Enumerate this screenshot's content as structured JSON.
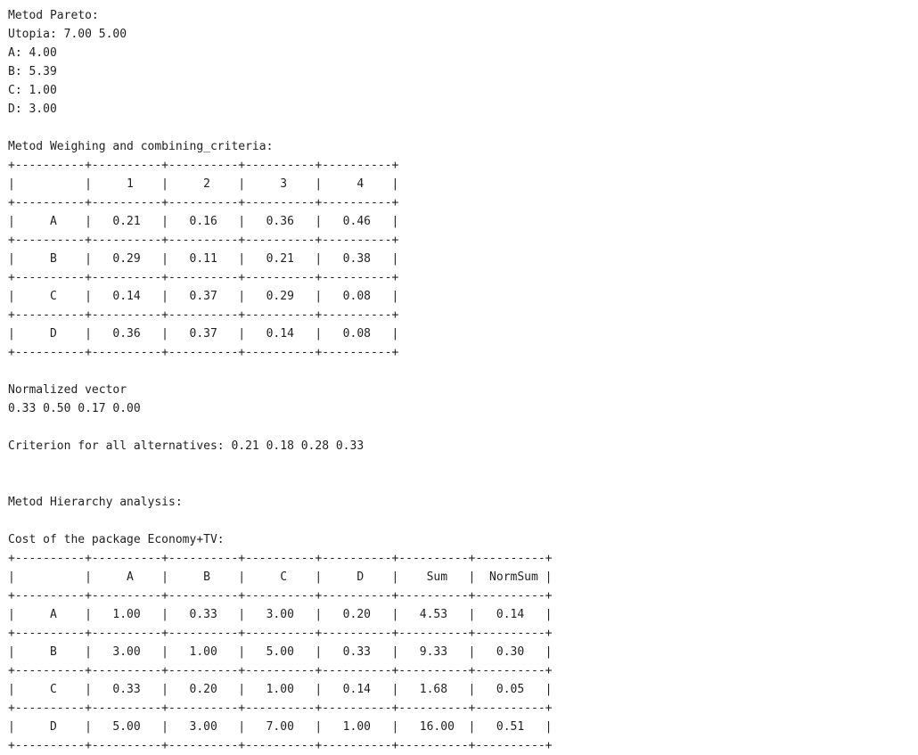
{
  "console": {
    "lines": [
      "Metod Pareto:",
      "Utopia: 7.00 5.00",
      "A: 4.00",
      "B: 5.39",
      "C: 1.00",
      "D: 3.00",
      "",
      "Metod Weighing and combining_criteria:",
      "+----------+----------+----------+----------+----------+",
      "|          |     1    |     2    |     3    |     4    |",
      "+----------+----------+----------+----------+----------+",
      "|     A    |   0.21   |   0.16   |   0.36   |   0.46   |",
      "+----------+----------+----------+----------+----------+",
      "|     B    |   0.29   |   0.11   |   0.21   |   0.38   |",
      "+----------+----------+----------+----------+----------+",
      "|     C    |   0.14   |   0.37   |   0.29   |   0.08   |",
      "+----------+----------+----------+----------+----------+",
      "|     D    |   0.36   |   0.37   |   0.14   |   0.08   |",
      "+----------+----------+----------+----------+----------+",
      "",
      "Normalized vector",
      "0.33 0.50 0.17 0.00",
      "",
      "Criterion for all alternatives: 0.21 0.18 0.28 0.33",
      "",
      "",
      "Metod Hierarchy analysis:",
      "",
      "Cost of the package Economy+TV:",
      "+----------+----------+----------+----------+----------+----------+----------+",
      "|          |     A    |     B    |     C    |     D    |    Sum   |  NormSum |",
      "+----------+----------+----------+----------+----------+----------+----------+",
      "|     A    |   1.00   |   0.33   |   3.00   |   0.20   |   4.53   |   0.14   |",
      "+----------+----------+----------+----------+----------+----------+----------+",
      "|     B    |   3.00   |   1.00   |   5.00   |   0.33   |   9.33   |   0.30   |",
      "+----------+----------+----------+----------+----------+----------+----------+",
      "|     C    |   0.33   |   0.20   |   1.00   |   0.14   |   1.68   |   0.05   |",
      "+----------+----------+----------+----------+----------+----------+----------+",
      "|     D    |   5.00   |   3.00   |   7.00   |   1.00   |   16.00  |   0.51   |",
      "+----------+----------+----------+----------+----------+----------+----------+"
    ]
  }
}
